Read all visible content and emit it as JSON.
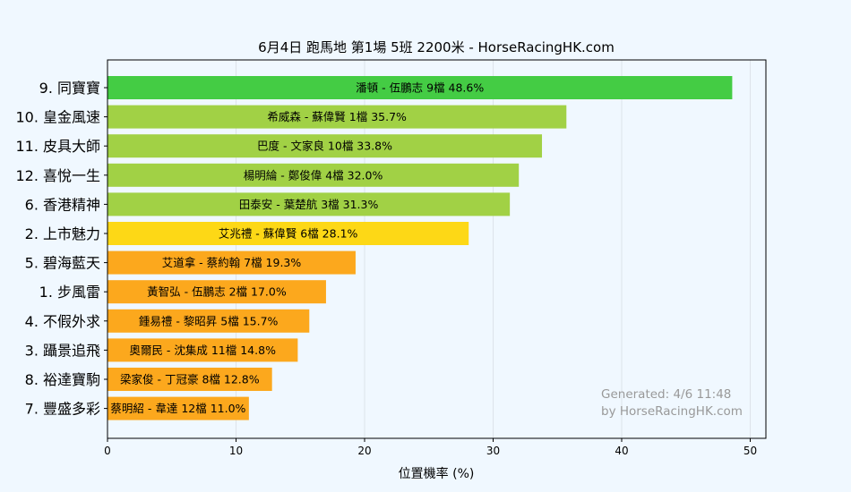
{
  "chart_data": {
    "type": "bar",
    "orientation": "horizontal",
    "title": "6月4日  跑馬地  第1場  5班  2200米 - HorseRacingHK.com",
    "xlabel": "位置機率 (%)",
    "ylabel": "",
    "xlim": [
      0,
      51
    ],
    "xticks": [
      "0",
      "10",
      "20",
      "30",
      "40",
      "50"
    ],
    "grid": true,
    "categories": [
      "9. 同寶寶",
      "10. 皇金風速",
      "11. 皮具大師",
      "12. 喜悅一生",
      "6. 香港精神",
      "2. 上市魅力",
      "5. 碧海藍天",
      "1. 步風雷",
      "4. 不假外求",
      "3. 躡景追飛",
      "8. 裕達寶駒",
      "7. 豐盛多彩"
    ],
    "values": [
      48.6,
      35.7,
      33.8,
      32.0,
      31.3,
      28.1,
      19.3,
      17.0,
      15.7,
      14.8,
      12.8,
      11.0
    ],
    "bar_labels": [
      "潘頓 - 伍鵬志 9檔  48.6%",
      "希威森 - 蘇偉賢 1檔  35.7%",
      "巴度 - 文家良 10檔  33.8%",
      "楊明綸 - 鄭俊偉 4檔  32.0%",
      "田泰安 - 葉楚航 3檔  31.3%",
      "艾兆禮 - 蘇偉賢 6檔  28.1%",
      "艾道拿 - 蔡約翰 7檔  19.3%",
      "黃智弘 - 伍鵬志 2檔  17.0%",
      "鍾易禮 - 黎昭昇 5檔  15.7%",
      "奧爾民 - 沈集成 11檔  14.8%",
      "梁家俊 - 丁冠豪 8檔  12.8%",
      "蔡明紹 - 韋達 12檔  11.0%"
    ],
    "colors": [
      "#44cc44",
      "#a1d145",
      "#a1d145",
      "#a1d145",
      "#a1d145",
      "#fdd816",
      "#fca81d",
      "#fca81d",
      "#fca81d",
      "#fca81d",
      "#fca81d",
      "#fca81d"
    ]
  },
  "watermark": {
    "line1": "Generated: 4/6 11:48",
    "line2": "by HorseRacingHK.com"
  }
}
